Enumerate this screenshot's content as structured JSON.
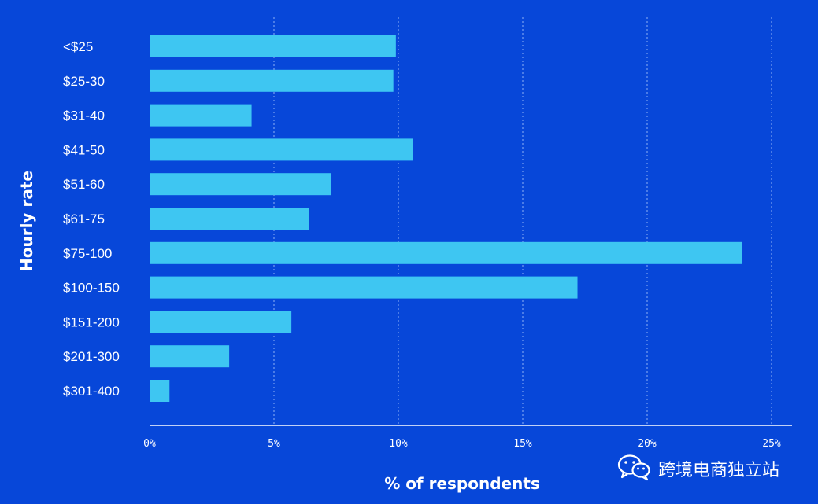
{
  "colors": {
    "background": "#0747d9",
    "bar": "#3ec6f2",
    "text": "#ffffff",
    "grid": "#8fb0f5"
  },
  "chart_data": {
    "type": "bar",
    "orientation": "horizontal",
    "title": "",
    "xlabel": "% of respondents",
    "ylabel": "Hourly rate",
    "xlim": [
      0,
      25
    ],
    "xticks": [
      "0%",
      "5%",
      "10%",
      "15%",
      "20%",
      "25%"
    ],
    "grid": true,
    "categories": [
      "<$25",
      "$25-30",
      "$31-40",
      "$41-50",
      "$51-60",
      "$61-75",
      "$75-100",
      "$100-150",
      "$151-200",
      "$201-300",
      "$301-400"
    ],
    "values": [
      9.9,
      9.8,
      4.1,
      10.6,
      7.3,
      6.4,
      23.8,
      17.2,
      5.7,
      3.2,
      0.8
    ]
  },
  "watermark": {
    "icon": "wechat-icon",
    "text": "跨境电商独立站"
  }
}
